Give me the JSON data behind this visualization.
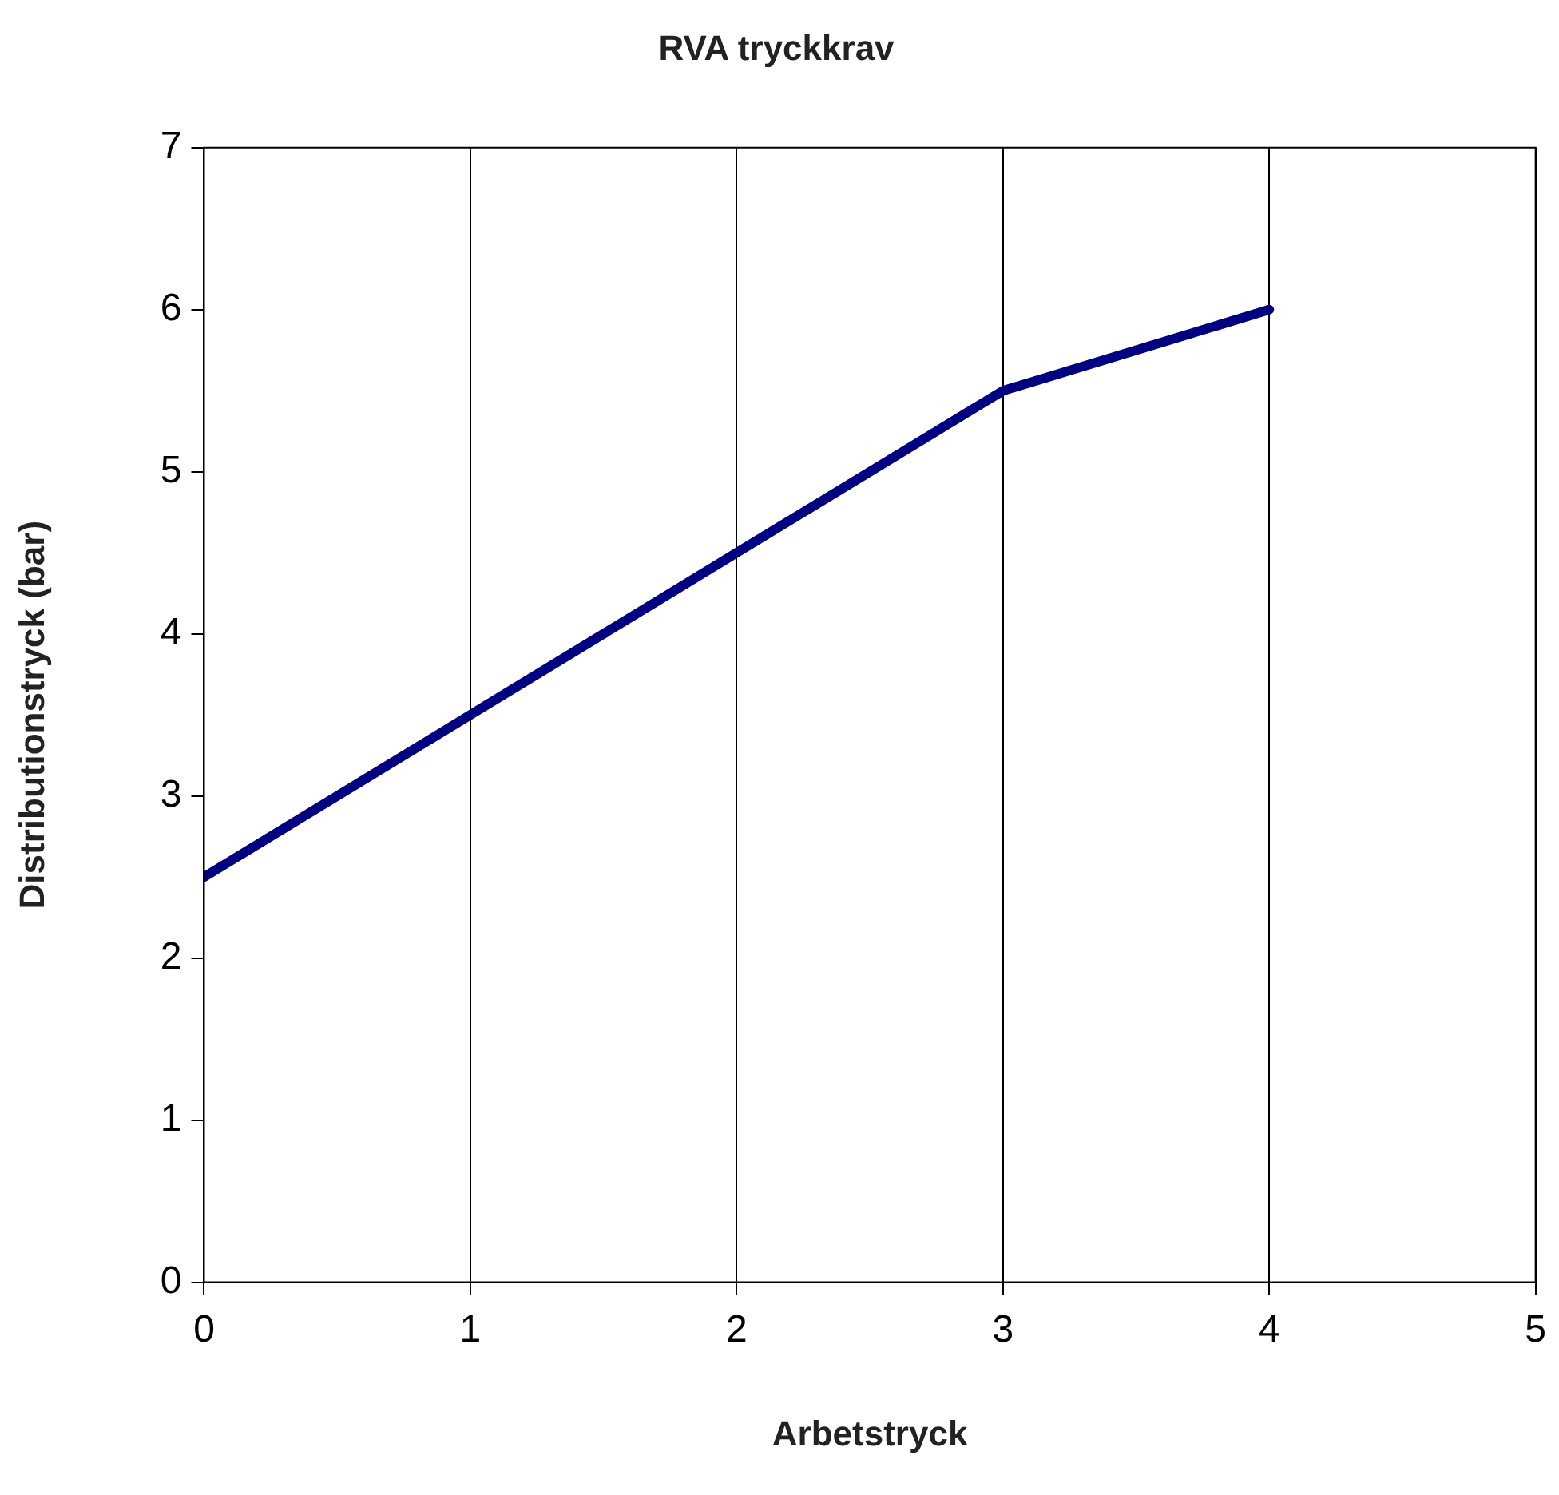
{
  "chart_data": {
    "type": "line",
    "title": "RVA tryckkrav",
    "xlabel": "Arbetstryck",
    "ylabel": "Distributionstryck (bar)",
    "x": [
      0,
      1,
      2,
      3,
      4
    ],
    "series": [
      {
        "color": "#000080",
        "values": [
          2.5,
          3.5,
          4.5,
          5.5,
          6
        ]
      }
    ],
    "xlim": [
      0,
      5
    ],
    "xticks": [
      0,
      1,
      2,
      3,
      4,
      5
    ],
    "ylim": [
      0,
      7
    ],
    "yticks": [
      0,
      1,
      2,
      3,
      4,
      5,
      6,
      7
    ],
    "grid": "x",
    "legend": false,
    "marker": "none",
    "line_style": "solid"
  }
}
